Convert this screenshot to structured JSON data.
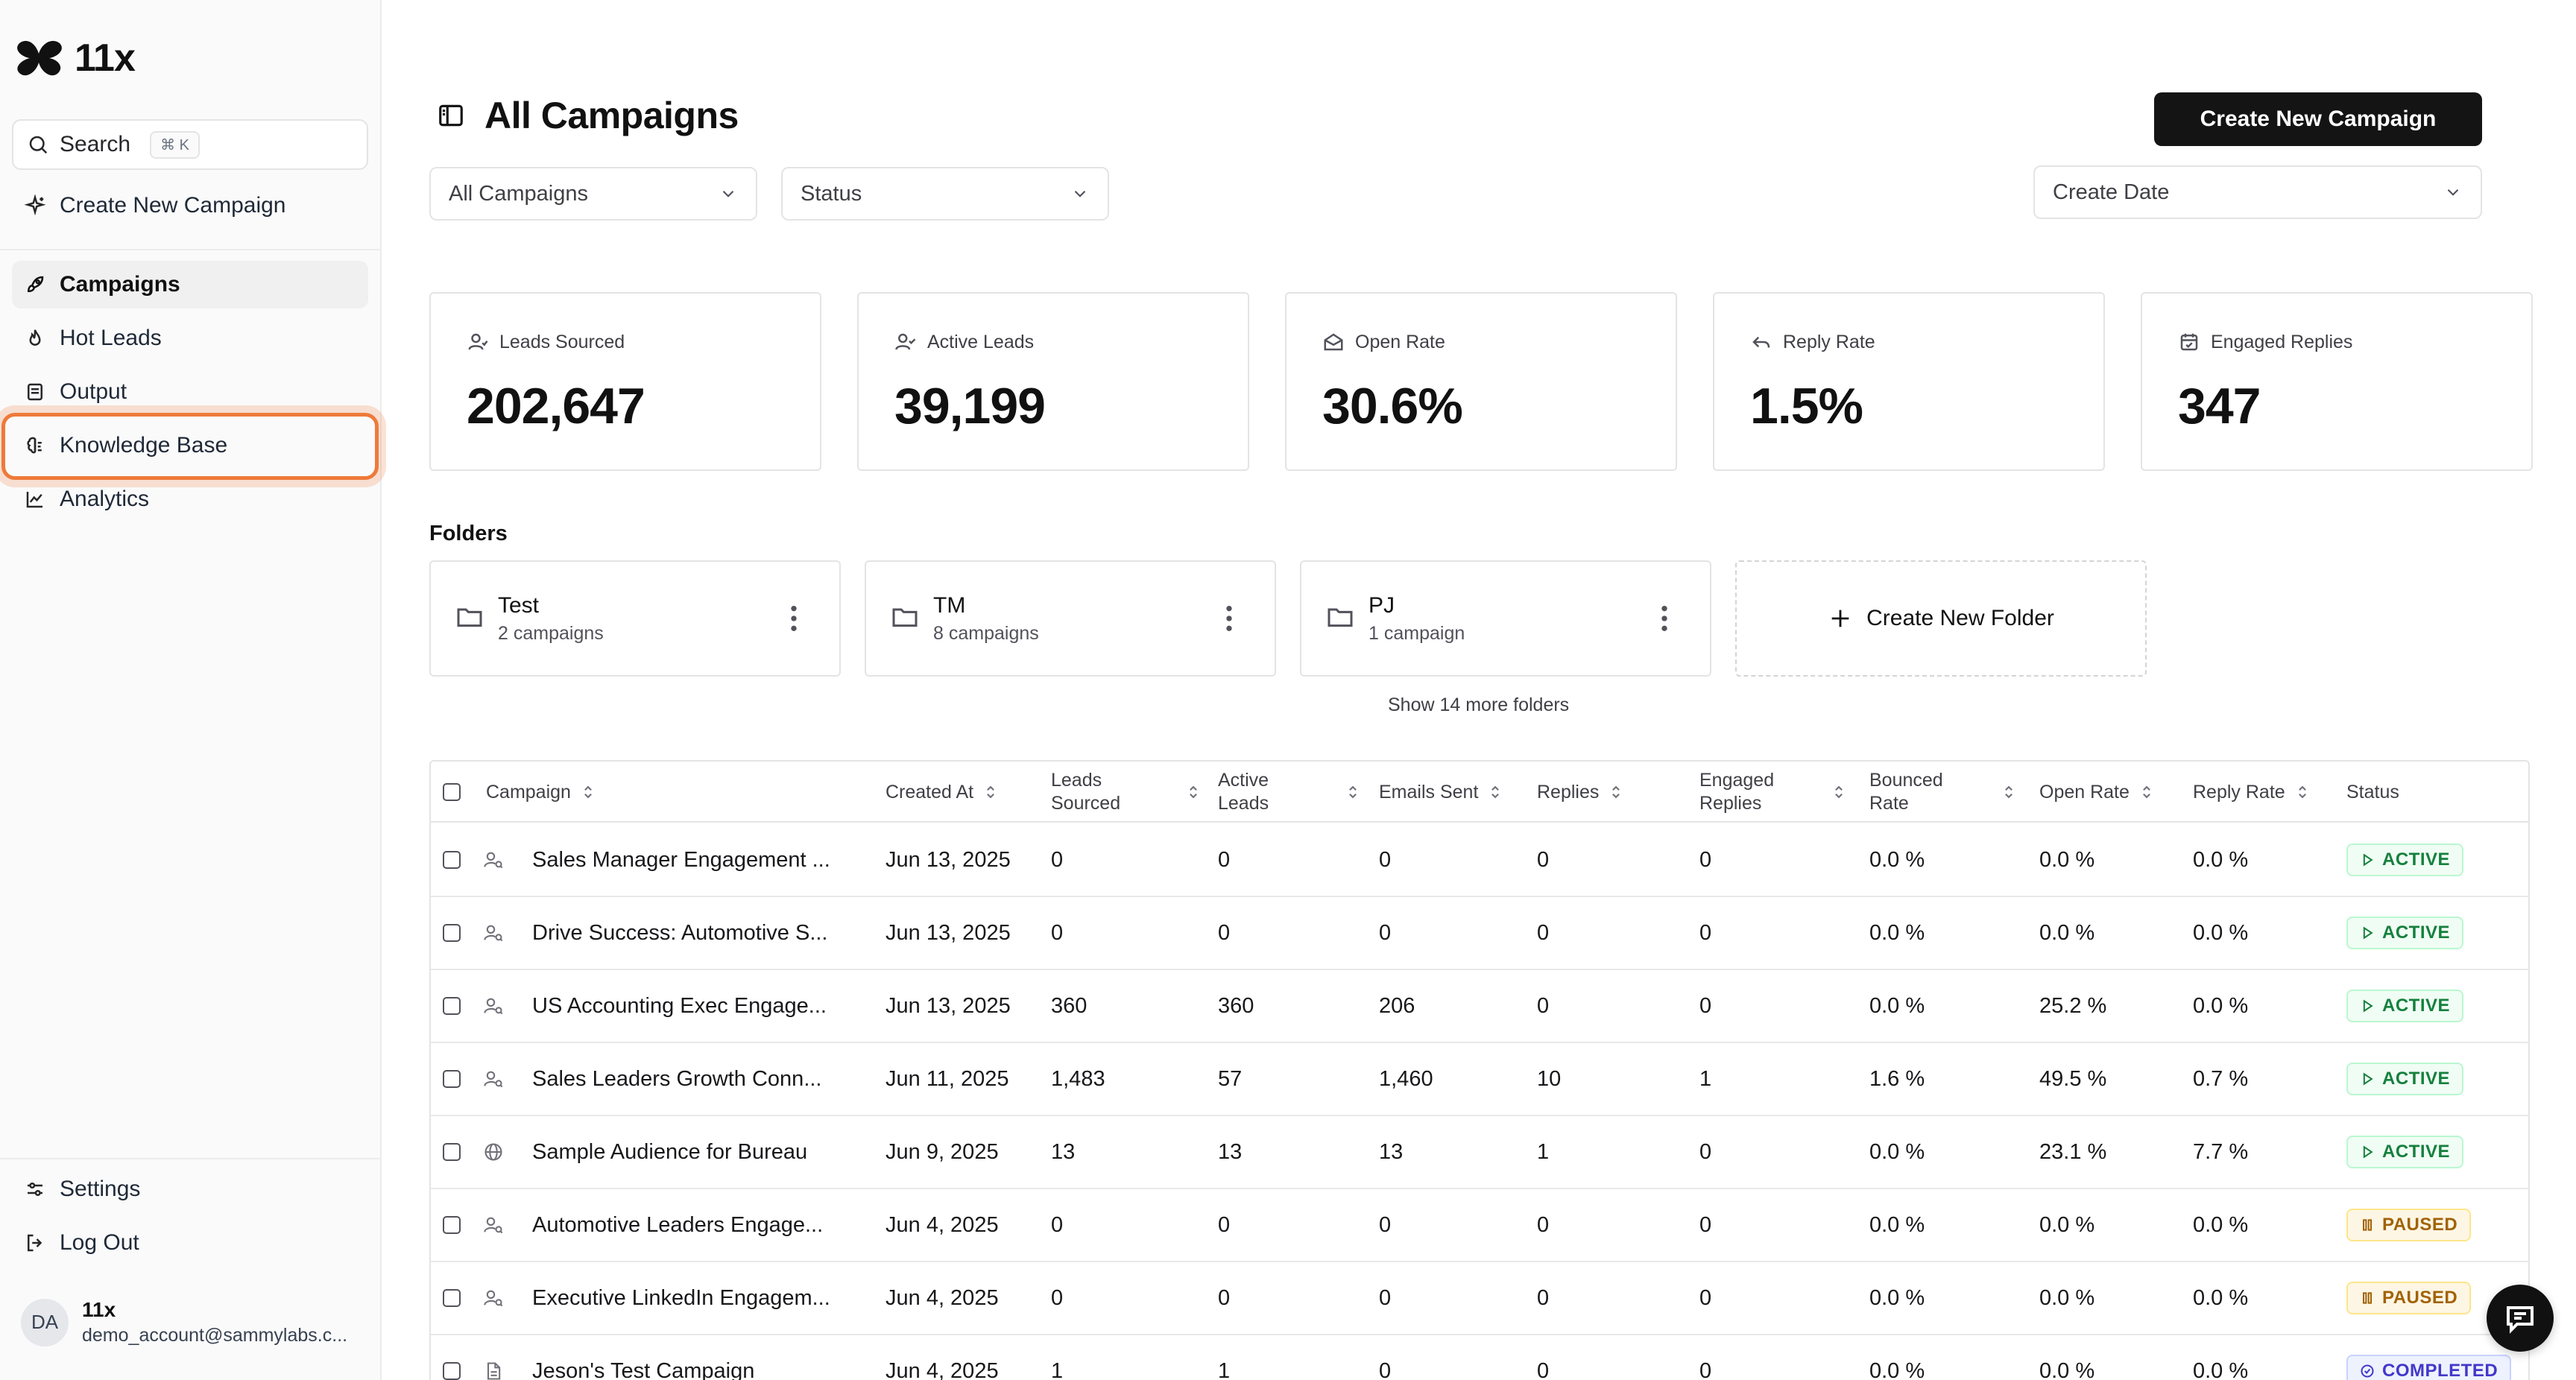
{
  "brand": {
    "name": "11x"
  },
  "sidebar": {
    "search": {
      "label": "Search",
      "shortcut": "⌘ K"
    },
    "create_campaign": "Create New Campaign",
    "nav": [
      {
        "label": "Campaigns",
        "icon": "rocket-icon",
        "active": true
      },
      {
        "label": "Hot Leads",
        "icon": "flame-icon"
      },
      {
        "label": "Output",
        "icon": "document-icon"
      },
      {
        "label": "Knowledge Base",
        "icon": "brain-icon",
        "highlighted": true
      },
      {
        "label": "Analytics",
        "icon": "line-chart-icon"
      }
    ],
    "settings": "Settings",
    "logout": "Log Out",
    "user": {
      "initials": "DA",
      "name": "11x",
      "email": "demo_account@sammylabs.c..."
    }
  },
  "header": {
    "title": "All Campaigns",
    "create_button": "Create New Campaign"
  },
  "filters": {
    "campaigns": "All Campaigns",
    "status": "Status",
    "date": "Create Date"
  },
  "stats": [
    {
      "label": "Leads Sourced",
      "value": "202,647",
      "icon": "user-icon"
    },
    {
      "label": "Active Leads",
      "value": "39,199",
      "icon": "user-check-icon"
    },
    {
      "label": "Open Rate",
      "value": "30.6%",
      "icon": "mail-open-icon"
    },
    {
      "label": "Reply Rate",
      "value": "1.5%",
      "icon": "reply-icon"
    },
    {
      "label": "Engaged Replies",
      "value": "347",
      "icon": "calendar-icon"
    }
  ],
  "folders": {
    "title": "Folders",
    "items": [
      {
        "name": "Test",
        "count": "2 campaigns"
      },
      {
        "name": "TM",
        "count": "8 campaigns"
      },
      {
        "name": "PJ",
        "count": "1 campaign"
      }
    ],
    "create_label": "Create New Folder",
    "show_more": "Show 14 more folders"
  },
  "table": {
    "columns": {
      "campaign": "Campaign",
      "created_at": "Created At",
      "leads_sourced_1": "Leads",
      "leads_sourced_2": "Sourced",
      "active_leads_1": "Active",
      "active_leads_2": "Leads",
      "emails_sent": "Emails Sent",
      "replies": "Replies",
      "engaged_replies_1": "Engaged",
      "engaged_replies_2": "Replies",
      "bounced_rate_1": "Bounced",
      "bounced_rate_2": "Rate",
      "open_rate": "Open Rate",
      "reply_rate": "Reply Rate",
      "status": "Status"
    },
    "rows": [
      {
        "type_icon": "user-search-icon",
        "name": "Sales Manager Engagement ...",
        "created": "Jun 13, 2025",
        "leads": "0",
        "active": "0",
        "emails": "0",
        "replies": "0",
        "engaged": "0",
        "bounced": "0.0 %",
        "open": "0.0 %",
        "reply": "0.0 %",
        "status": "ACTIVE",
        "status_kind": "active"
      },
      {
        "type_icon": "user-search-icon",
        "name": "Drive Success: Automotive S...",
        "created": "Jun 13, 2025",
        "leads": "0",
        "active": "0",
        "emails": "0",
        "replies": "0",
        "engaged": "0",
        "bounced": "0.0 %",
        "open": "0.0 %",
        "reply": "0.0 %",
        "status": "ACTIVE",
        "status_kind": "active"
      },
      {
        "type_icon": "user-search-icon",
        "name": "US Accounting Exec Engage...",
        "created": "Jun 13, 2025",
        "leads": "360",
        "active": "360",
        "emails": "206",
        "replies": "0",
        "engaged": "0",
        "bounced": "0.0 %",
        "open": "25.2 %",
        "reply": "0.0 %",
        "status": "ACTIVE",
        "status_kind": "active"
      },
      {
        "type_icon": "user-search-icon",
        "name": "Sales Leaders Growth Conn...",
        "created": "Jun 11, 2025",
        "leads": "1,483",
        "active": "57",
        "emails": "1,460",
        "replies": "10",
        "engaged": "1",
        "bounced": "1.6 %",
        "open": "49.5 %",
        "reply": "0.7 %",
        "status": "ACTIVE",
        "status_kind": "active"
      },
      {
        "type_icon": "globe-icon",
        "name": "Sample Audience for Bureau",
        "created": "Jun 9, 2025",
        "leads": "13",
        "active": "13",
        "emails": "13",
        "replies": "1",
        "engaged": "0",
        "bounced": "0.0 %",
        "open": "23.1 %",
        "reply": "7.7 %",
        "status": "ACTIVE",
        "status_kind": "active"
      },
      {
        "type_icon": "user-search-icon",
        "name": "Automotive Leaders Engage...",
        "created": "Jun 4, 2025",
        "leads": "0",
        "active": "0",
        "emails": "0",
        "replies": "0",
        "engaged": "0",
        "bounced": "0.0 %",
        "open": "0.0 %",
        "reply": "0.0 %",
        "status": "PAUSED",
        "status_kind": "paused"
      },
      {
        "type_icon": "user-search-icon",
        "name": "Executive LinkedIn Engagem...",
        "created": "Jun 4, 2025",
        "leads": "0",
        "active": "0",
        "emails": "0",
        "replies": "0",
        "engaged": "0",
        "bounced": "0.0 %",
        "open": "0.0 %",
        "reply": "0.0 %",
        "status": "PAUSED",
        "status_kind": "paused"
      },
      {
        "type_icon": "file-icon",
        "name": "Jeson's Test Campaign",
        "created": "Jun 4, 2025",
        "leads": "1",
        "active": "1",
        "emails": "0",
        "replies": "0",
        "engaged": "0",
        "bounced": "0.0 %",
        "open": "0.0 %",
        "reply": "0.0 %",
        "status": "COMPLETED",
        "status_kind": "completed"
      }
    ]
  },
  "colors": {
    "highlight": "#ee7a3a",
    "primary": "#141414",
    "active": "#15803d",
    "paused": "#a16207",
    "completed": "#4338ca"
  }
}
